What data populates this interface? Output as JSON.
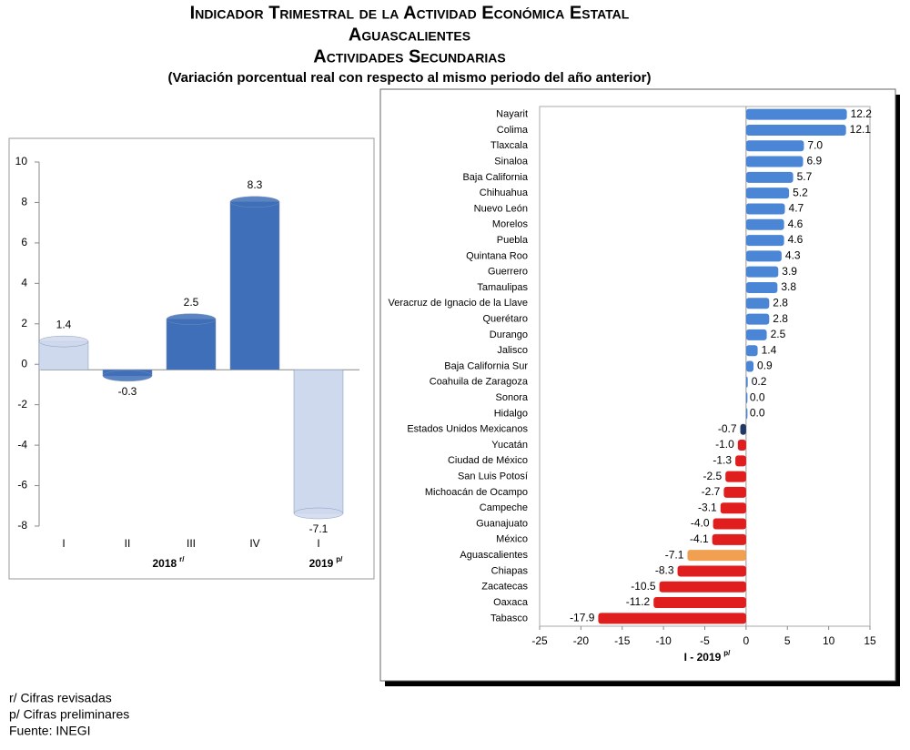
{
  "header": {
    "title": "Indicador Trimestral de la Actividad Económica Estatal",
    "state": "Aguascalientes",
    "sector": "Actividades Secundarias",
    "subtitle": "(Variación porcentual real con respecto al mismo periodo del año anterior)"
  },
  "chart_data": [
    {
      "type": "bar",
      "categories": [
        "I",
        "II",
        "III",
        "IV",
        "I"
      ],
      "values": [
        1.4,
        -0.3,
        2.5,
        8.3,
        -7.1
      ],
      "colors": [
        "#cfd9ee",
        "#3f6fb8",
        "#3f6fb8",
        "#3f6fb8",
        "#cfd9ee"
      ],
      "groups": [
        {
          "label": "2018",
          "note": "r/"
        },
        {
          "label": "2019",
          "note": "p/"
        }
      ],
      "ylim": [
        -8,
        10
      ],
      "yticks": [
        -8,
        -6,
        -4,
        -2,
        0,
        2,
        4,
        6,
        8,
        10
      ]
    },
    {
      "type": "barh",
      "categories": [
        "Nayarit",
        "Colima",
        "Tlaxcala",
        "Sinaloa",
        "Baja California",
        "Chihuahua",
        "Nuevo León",
        "Morelos",
        "Puebla",
        "Quintana Roo",
        "Guerrero",
        "Tamaulipas",
        "Veracruz de Ignacio de la Llave",
        "Querétaro",
        "Durango",
        "Jalisco",
        "Baja California Sur",
        "Coahuila de Zaragoza",
        "Sonora",
        "Hidalgo",
        "Estados Unidos Mexicanos",
        "Yucatán",
        "Ciudad de México",
        "San Luis Potosí",
        "Michoacán de Ocampo",
        "Campeche",
        "Guanajuato",
        "México",
        "Aguascalientes",
        "Chiapas",
        "Zacatecas",
        "Oaxaca",
        "Tabasco"
      ],
      "values": [
        12.2,
        12.1,
        7.0,
        6.9,
        5.7,
        5.2,
        4.7,
        4.6,
        4.6,
        4.3,
        3.9,
        3.8,
        2.8,
        2.8,
        2.5,
        1.4,
        0.9,
        0.2,
        0.0,
        0.0,
        -0.7,
        -1.0,
        -1.3,
        -2.5,
        -2.7,
        -3.1,
        -4.0,
        -4.1,
        -7.1,
        -8.3,
        -10.5,
        -11.2,
        -17.9
      ],
      "value_labels": [
        "12.2",
        "12.1",
        "7.0",
        "6.9",
        "5.7",
        "5.2",
        "4.7",
        "4.6",
        "4.6",
        "4.3",
        "3.9",
        "3.8",
        "2.8",
        "2.8",
        "2.5",
        "1.4",
        "0.9",
        "0.2",
        "0.0",
        "0.0",
        "-0.7",
        "-1.0",
        "-1.3",
        "-2.5",
        "-2.7",
        "-3.1",
        "-4.0",
        "-4.1",
        "-7.1",
        "-8.3",
        "-10.5",
        "-11.2",
        "-17.9"
      ],
      "colors": [
        "#4a85d6",
        "#4a85d6",
        "#4a85d6",
        "#4a85d6",
        "#4a85d6",
        "#4a85d6",
        "#4a85d6",
        "#4a85d6",
        "#4a85d6",
        "#4a85d6",
        "#4a85d6",
        "#4a85d6",
        "#4a85d6",
        "#4a85d6",
        "#4a85d6",
        "#4a85d6",
        "#4a85d6",
        "#4a85d6",
        "#4a85d6",
        "#4a85d6",
        "#1f3864",
        "#e01e1e",
        "#e01e1e",
        "#e01e1e",
        "#e01e1e",
        "#e01e1e",
        "#e01e1e",
        "#e01e1e",
        "#f0a050",
        "#e01e1e",
        "#e01e1e",
        "#e01e1e",
        "#e01e1e"
      ],
      "xlabel": "I - 2019",
      "xlabel_note": "p/",
      "xlim": [
        -25,
        15
      ],
      "xticks": [
        -25,
        -20,
        -15,
        -10,
        -5,
        0,
        5,
        10,
        15
      ]
    }
  ],
  "footnotes": [
    "r/ Cifras revisadas",
    "p/ Cifras preliminares",
    "Fuente: INEGI"
  ]
}
